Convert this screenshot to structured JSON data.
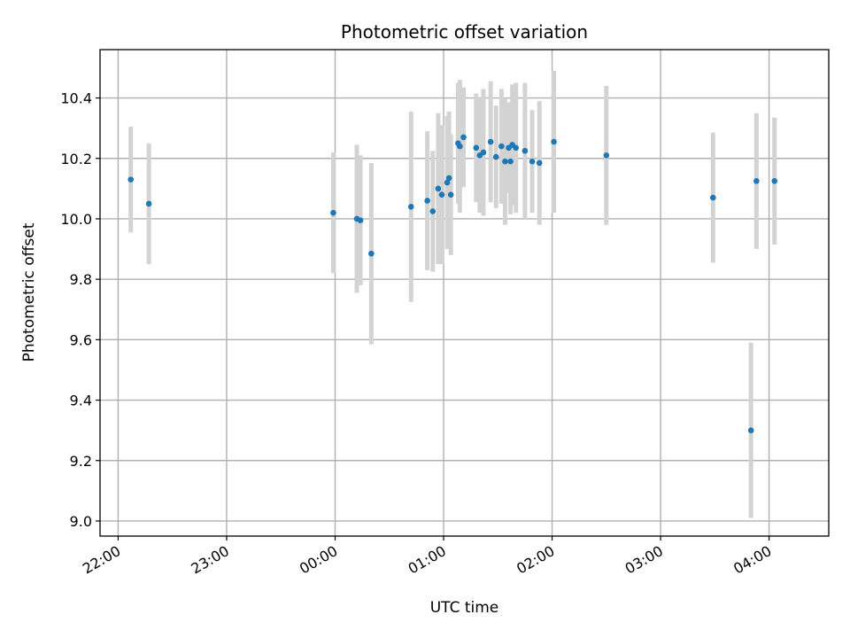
{
  "chart_data": {
    "type": "scatter",
    "title": "Photometric offset variation",
    "xlabel": "UTC time",
    "ylabel": "Photometric offset",
    "grid": true,
    "marker_color": "#1f77b4",
    "errorbar_color": "#d3d3d3",
    "x_range": [
      "21:50",
      "04:33"
    ],
    "ylim": [
      8.95,
      10.56
    ],
    "x_ticks": [
      "22:00",
      "23:00",
      "00:00",
      "01:00",
      "02:00",
      "03:00",
      "04:00"
    ],
    "y_ticks": [
      "9.0",
      "9.2",
      "9.4",
      "9.6",
      "9.8",
      "10.0",
      "10.2",
      "10.4"
    ],
    "points": [
      {
        "x": "22:07",
        "y": 10.13,
        "err": 0.175
      },
      {
        "x": "22:17",
        "y": 10.05,
        "err": 0.2
      },
      {
        "x": "23:59",
        "y": 10.02,
        "err": 0.2
      },
      {
        "x": "00:12",
        "y": 10.0,
        "err": 0.245
      },
      {
        "x": "00:14",
        "y": 9.995,
        "err": 0.215
      },
      {
        "x": "00:20",
        "y": 9.885,
        "err": 0.3
      },
      {
        "x": "00:42",
        "y": 10.04,
        "err": 0.315
      },
      {
        "x": "00:51",
        "y": 10.06,
        "err": 0.23
      },
      {
        "x": "00:54",
        "y": 10.025,
        "err": 0.2
      },
      {
        "x": "00:57",
        "y": 10.1,
        "err": 0.25
      },
      {
        "x": "00:59",
        "y": 10.08,
        "err": 0.23
      },
      {
        "x": "01:02",
        "y": 10.12,
        "err": 0.22
      },
      {
        "x": "01:03",
        "y": 10.135,
        "err": 0.22
      },
      {
        "x": "01:04",
        "y": 10.08,
        "err": 0.2
      },
      {
        "x": "01:08",
        "y": 10.25,
        "err": 0.2
      },
      {
        "x": "01:09",
        "y": 10.24,
        "err": 0.22
      },
      {
        "x": "01:11",
        "y": 10.27,
        "err": 0.165
      },
      {
        "x": "01:18",
        "y": 10.235,
        "err": 0.18
      },
      {
        "x": "01:20",
        "y": 10.21,
        "err": 0.19
      },
      {
        "x": "01:22",
        "y": 10.22,
        "err": 0.21
      },
      {
        "x": "01:26",
        "y": 10.255,
        "err": 0.2
      },
      {
        "x": "01:29",
        "y": 10.205,
        "err": 0.17
      },
      {
        "x": "01:32",
        "y": 10.24,
        "err": 0.19
      },
      {
        "x": "01:34",
        "y": 10.19,
        "err": 0.21
      },
      {
        "x": "01:36",
        "y": 10.235,
        "err": 0.15
      },
      {
        "x": "01:37",
        "y": 10.19,
        "err": 0.175
      },
      {
        "x": "01:38",
        "y": 10.245,
        "err": 0.2
      },
      {
        "x": "01:40",
        "y": 10.235,
        "err": 0.215
      },
      {
        "x": "01:45",
        "y": 10.225,
        "err": 0.225
      },
      {
        "x": "01:49",
        "y": 10.19,
        "err": 0.17
      },
      {
        "x": "01:53",
        "y": 10.185,
        "err": 0.205
      },
      {
        "x": "02:01",
        "y": 10.255,
        "err": 0.235
      },
      {
        "x": "02:30",
        "y": 10.21,
        "err": 0.23
      },
      {
        "x": "03:29",
        "y": 10.07,
        "err": 0.215
      },
      {
        "x": "03:50",
        "y": 9.3,
        "err": 0.29
      },
      {
        "x": "03:53",
        "y": 10.125,
        "err": 0.225
      },
      {
        "x": "04:03",
        "y": 10.125,
        "err": 0.21
      }
    ]
  }
}
